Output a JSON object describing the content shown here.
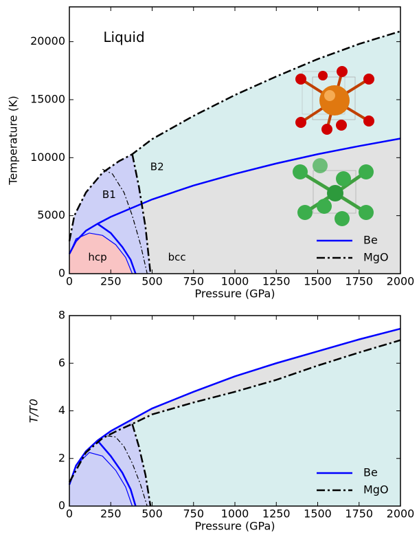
{
  "chart_data": [
    {
      "type": "line",
      "xlabel": "Pressure (GPa)",
      "ylabel": "Temperature (K)",
      "xlim": [
        0,
        2000
      ],
      "ylim": [
        0,
        23000
      ],
      "xticks": [
        0,
        250,
        500,
        750,
        1000,
        1250,
        1500,
        1750,
        2000
      ],
      "yticks": [
        0,
        5000,
        10000,
        15000,
        20000
      ],
      "legend": "lower right",
      "annotations": [
        "Liquid",
        "B2",
        "B1",
        "hcp",
        "bcc"
      ],
      "series": [
        {
          "name": "Be",
          "color": "#0000ff",
          "dash": false,
          "lines": [
            {
              "x": [
                0,
                40,
                100,
                170,
                250,
                500,
                750,
                1000,
                1250,
                1500,
                1750,
                2000
              ],
              "values": [
                1700,
                2800,
                3700,
                4300,
                4900,
                6400,
                7600,
                8600,
                9500,
                10300,
                11000,
                11650
              ],
              "linewidth": 2.5
            },
            {
              "x": [
                170,
                250,
                320,
                370,
                400
              ],
              "values": [
                4300,
                3500,
                2300,
                1200,
                0
              ],
              "linewidth": 2.5
            },
            {
              "x": [
                0,
                40,
                120,
                200,
                280,
                340,
                380
              ],
              "values": [
                1700,
                3000,
                3500,
                3300,
                2500,
                1400,
                0
              ],
              "linewidth": 1.2
            }
          ]
        },
        {
          "name": "MgO",
          "color": "#000000",
          "dash": true,
          "lines": [
            {
              "x": [
                0,
                30,
                100,
                200,
                300,
                380,
                500,
                750,
                1000,
                1250,
                1500,
                1750,
                2000
              ],
              "values": [
                2800,
                5000,
                7000,
                8700,
                9700,
                10300,
                11600,
                13600,
                15400,
                17000,
                18500,
                19800,
                20900
              ],
              "linewidth": 2.5
            },
            {
              "x": [
                380,
                420,
                460,
                490
              ],
              "values": [
                10300,
                7500,
                4000,
                0
              ],
              "linewidth": 2.5
            },
            {
              "x": [
                200,
                260,
                330,
                380,
                430,
                470
              ],
              "values": [
                9000,
                8600,
                7000,
                5000,
                2500,
                0
              ],
              "linewidth": 1.2
            }
          ]
        }
      ]
    },
    {
      "type": "line",
      "xlabel": "Pressure (GPa)",
      "ylabel": "T/T0",
      "xlim": [
        0,
        2000
      ],
      "ylim": [
        0,
        8
      ],
      "xticks": [
        0,
        250,
        500,
        750,
        1000,
        1250,
        1500,
        1750,
        2000
      ],
      "yticks": [
        0,
        2,
        4,
        6,
        8
      ],
      "legend": "lower right",
      "series": [
        {
          "name": "Be",
          "color": "#0000ff",
          "dash": false,
          "lines": [
            {
              "x": [
                0,
                40,
                100,
                170,
                250,
                500,
                750,
                1000,
                1250,
                1500,
                1750,
                2000
              ],
              "values": [
                0.9,
                1.7,
                2.3,
                2.75,
                3.15,
                4.1,
                4.8,
                5.45,
                6.0,
                6.5,
                7.0,
                7.45
              ],
              "linewidth": 2.5
            },
            {
              "x": [
                170,
                250,
                320,
                370,
                400
              ],
              "values": [
                2.75,
                2.1,
                1.4,
                0.7,
                0
              ],
              "linewidth": 2.5
            },
            {
              "x": [
                0,
                40,
                120,
                200,
                280,
                340,
                380
              ],
              "values": [
                0.9,
                1.7,
                2.25,
                2.1,
                1.5,
                0.8,
                0
              ],
              "linewidth": 1.2
            }
          ]
        },
        {
          "name": "MgO",
          "color": "#000000",
          "dash": true,
          "lines": [
            {
              "x": [
                0,
                100,
                200,
                300,
                380,
                500,
                750,
                1000,
                1250,
                1500,
                1750,
                2000
              ],
              "values": [
                1.0,
                2.25,
                2.85,
                3.2,
                3.45,
                3.85,
                4.35,
                4.8,
                5.3,
                5.9,
                6.45,
                6.97
              ],
              "linewidth": 2.5
            },
            {
              "x": [
                380,
                420,
                460,
                490
              ],
              "values": [
                3.45,
                2.5,
                1.3,
                0
              ],
              "linewidth": 2.5
            },
            {
              "x": [
                230,
                280,
                330,
                380,
                430,
                470
              ],
              "values": [
                2.95,
                2.9,
                2.5,
                1.8,
                0.9,
                0
              ],
              "linewidth": 1.2
            }
          ]
        }
      ]
    }
  ]
}
